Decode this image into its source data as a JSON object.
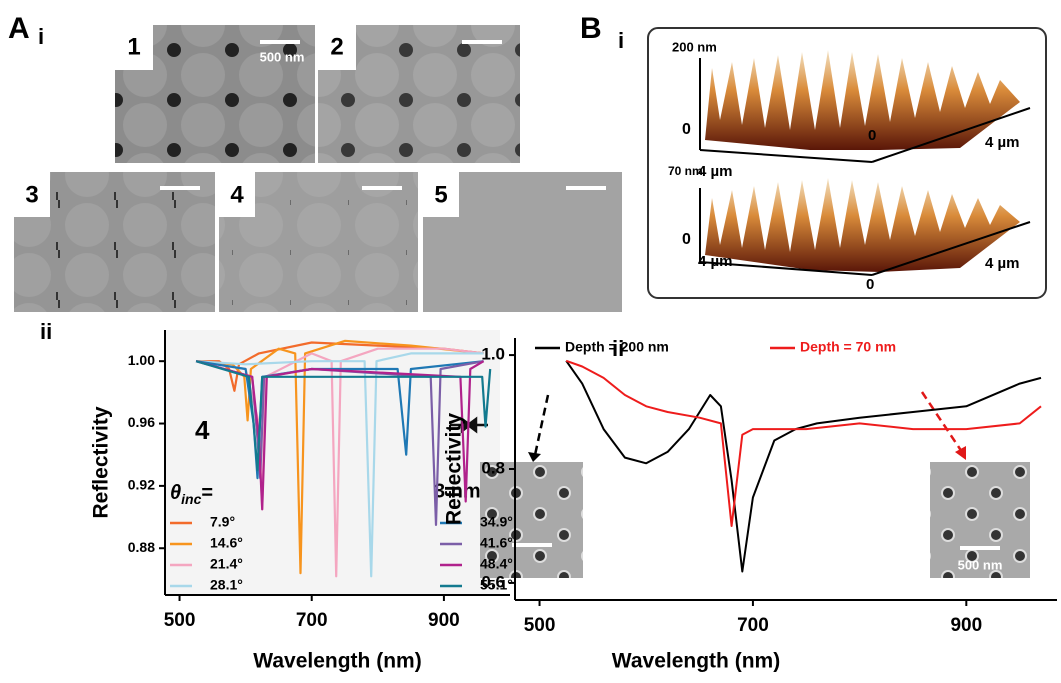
{
  "chart_data": [
    {
      "type": "line",
      "y_label": "Reflectivity",
      "x_label": "Wavelength (nm)",
      "xlim": [
        478,
        1000
      ],
      "xticks": [
        500,
        700,
        900
      ],
      "ylim": [
        0.85,
        1.02
      ],
      "yticks": [
        0.88,
        0.92,
        0.96,
        {
          "value": 1,
          "label": "1.00"
        }
      ],
      "legend": "bottom",
      "annotations": {
        "sample": "4",
        "resolution": "3 nm",
        "theta": {
          "symbol": "θ",
          "subscript": "inc",
          "suffix": "="
        }
      },
      "series": [
        {
          "name": "7.9°",
          "color": "#f26b2b",
          "x": [
            525,
            560,
            575,
            583,
            590,
            620,
            700,
            800,
            900,
            960
          ],
          "values": [
            1.0,
            1.0,
            0.995,
            0.981,
            0.998,
            1.005,
            1.012,
            1.01,
            1.008,
            1.005
          ]
        },
        {
          "name": "14.6°",
          "color": "#f7941d",
          "x": [
            525,
            580,
            598,
            603,
            608,
            650,
            675,
            683,
            690,
            750,
            850,
            960
          ],
          "values": [
            1.0,
            0.998,
            0.99,
            0.962,
            0.995,
            1.008,
            1.005,
            0.864,
            1.005,
            1.013,
            1.01,
            1.005
          ]
        },
        {
          "name": "21.4°",
          "color": "#f4a6c0",
          "x": [
            525,
            600,
            620,
            625,
            630,
            700,
            730,
            737,
            744,
            800,
            900,
            960
          ],
          "values": [
            1.0,
            0.995,
            0.96,
            0.905,
            0.99,
            1.005,
            1.0,
            0.862,
            1.0,
            1.008,
            1.008,
            1.005
          ]
        },
        {
          "name": "28.1°",
          "color": "#a8d8ea",
          "x": [
            525,
            600,
            700,
            780,
            790,
            798,
            850,
            960
          ],
          "values": [
            1.0,
            0.998,
            1.0,
            1.0,
            0.862,
            1.0,
            1.005,
            1.005
          ]
        },
        {
          "name": "34.9°",
          "color": "#1f78b4",
          "x": [
            525,
            600,
            612,
            618,
            625,
            700,
            830,
            843,
            850,
            960
          ],
          "values": [
            1.0,
            0.995,
            0.96,
            0.925,
            0.99,
            0.995,
            0.995,
            0.94,
            0.995,
            1.0
          ]
        },
        {
          "name": "41.6°",
          "color": "#7b5ea7",
          "x": [
            525,
            610,
            618,
            622,
            628,
            700,
            880,
            888,
            895,
            960
          ],
          "values": [
            1.0,
            0.99,
            0.95,
            0.925,
            0.99,
            0.995,
            0.99,
            0.895,
            0.995,
            1.0
          ]
        },
        {
          "name": "48.4°",
          "color": "#b0228c",
          "x": [
            525,
            610,
            620,
            625,
            632,
            700,
            925,
            933,
            940,
            960
          ],
          "values": [
            1.0,
            0.99,
            0.95,
            0.905,
            0.99,
            0.995,
            0.99,
            0.91,
            0.995,
            1.0
          ]
        },
        {
          "name": "55.1°",
          "color": "#137a8f",
          "x": [
            525,
            605,
            612,
            618,
            625,
            700,
            950,
            958,
            963,
            970
          ],
          "values": [
            1.0,
            0.99,
            0.96,
            0.93,
            0.99,
            0.99,
            0.99,
            0.99,
            0.958,
            0.995
          ]
        }
      ]
    },
    {
      "type": "line",
      "y_label": "Reflectivity",
      "x_label": "Wavelength (nm)",
      "xlim": [
        477,
        985
      ],
      "xticks": [
        500,
        700,
        900
      ],
      "ylim": [
        0.57,
        1.03
      ],
      "yticks": [
        0.6,
        0.8,
        {
          "value": 1,
          "label": "1.0"
        }
      ],
      "legend": "top",
      "inset_scale": "500 nm",
      "series": [
        {
          "name": "Depth = 200 nm",
          "color": "#000000",
          "x": [
            525,
            540,
            560,
            580,
            600,
            620,
            640,
            660,
            670,
            680,
            690,
            700,
            720,
            740,
            760,
            800,
            850,
            900,
            950,
            970
          ],
          "values": [
            0.99,
            0.95,
            0.87,
            0.82,
            0.81,
            0.83,
            0.87,
            0.93,
            0.91,
            0.78,
            0.62,
            0.75,
            0.85,
            0.87,
            0.88,
            0.89,
            0.9,
            0.91,
            0.95,
            0.96
          ]
        },
        {
          "name": "Depth = 70 nm",
          "color": "#ee1c1c",
          "x": [
            525,
            540,
            560,
            580,
            600,
            620,
            650,
            670,
            680,
            690,
            700,
            750,
            800,
            850,
            900,
            950,
            970
          ],
          "values": [
            0.99,
            0.98,
            0.96,
            0.93,
            0.91,
            0.9,
            0.89,
            0.88,
            0.7,
            0.86,
            0.87,
            0.87,
            0.88,
            0.87,
            0.87,
            0.88,
            0.91
          ]
        }
      ]
    }
  ],
  "labels": {
    "panel_a": "A",
    "a_i": "i",
    "a_ii": "ii",
    "panel_b": "B",
    "b_i": "i",
    "b_ii": "ii",
    "sem": [
      "1",
      "2",
      "3",
      "4",
      "5"
    ],
    "sem_scale": "500 nm",
    "afm_top": {
      "height": "200 nm",
      "zero": "0",
      "x_left": "4 µm",
      "x_origin": "0",
      "x_right": "4 µm"
    },
    "afm_bottom": {
      "height": "70 nm",
      "zero": "0",
      "x_left": "4 µm",
      "x_origin": "0",
      "x_right": "4 µm"
    }
  }
}
